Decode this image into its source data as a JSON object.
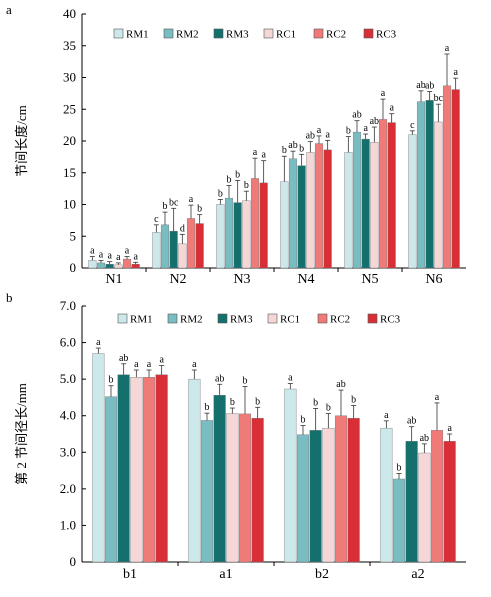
{
  "chart_data": [
    {
      "panel": "a",
      "type": "bar",
      "ylabel": "节间长度/cm",
      "ylim": [
        0,
        40
      ],
      "yticks": [
        0,
        5,
        10,
        15,
        20,
        25,
        30,
        35,
        40
      ],
      "categories": [
        "N1",
        "N2",
        "N3",
        "N4",
        "N5",
        "N6"
      ],
      "legend_position": "top",
      "series": [
        {
          "name": "RM1",
          "color": "#cde8ea",
          "values": [
            1.2,
            5.6,
            10.0,
            13.6,
            18.2,
            21.0
          ],
          "errors": [
            0.6,
            1.2,
            0.8,
            4.0,
            2.5,
            0.6
          ],
          "labels": [
            "a",
            "c",
            "b",
            "b",
            "b",
            "c"
          ]
        },
        {
          "name": "RM2",
          "color": "#79bdc2",
          "values": [
            0.8,
            6.8,
            11.0,
            17.2,
            21.4,
            26.2
          ],
          "errors": [
            0.4,
            2.0,
            2.0,
            1.2,
            1.8,
            1.7
          ],
          "labels": [
            "a",
            "b",
            "b",
            "ab",
            "ab",
            "ab"
          ]
        },
        {
          "name": "RM3",
          "color": "#13706c",
          "values": [
            0.6,
            5.8,
            10.3,
            16.1,
            20.3,
            26.4
          ],
          "errors": [
            0.4,
            3.6,
            3.5,
            1.8,
            0.8,
            1.4
          ],
          "labels": [
            "a",
            "bc",
            "b",
            "b",
            "a",
            "ab"
          ]
        },
        {
          "name": "RC1",
          "color": "#f5d7d7",
          "values": [
            0.5,
            3.8,
            10.6,
            18.2,
            19.8,
            23.0
          ],
          "errors": [
            0.3,
            1.5,
            1.5,
            1.7,
            2.4,
            2.8
          ],
          "labels": [
            "a",
            "d",
            "b",
            "ab",
            "ab",
            "bc"
          ]
        },
        {
          "name": "RC2",
          "color": "#ef7a78",
          "values": [
            1.4,
            7.8,
            14.1,
            19.6,
            23.4,
            28.7
          ],
          "errors": [
            0.4,
            2.1,
            3.2,
            1.2,
            3.2,
            5.0
          ],
          "labels": [
            "a",
            "a",
            "a",
            "a",
            "a",
            "a"
          ]
        },
        {
          "name": "RC3",
          "color": "#d82e35",
          "values": [
            0.6,
            7.0,
            13.4,
            18.6,
            22.9,
            28.1
          ],
          "errors": [
            0.3,
            1.4,
            3.5,
            1.5,
            1.4,
            1.8
          ],
          "labels": [
            "a",
            "b",
            "a",
            "a",
            "a",
            "a"
          ]
        }
      ]
    },
    {
      "panel": "b",
      "type": "bar",
      "ylabel": "第 2 节间径长/mm",
      "ylim": [
        0,
        7
      ],
      "yticks": [
        "0",
        "1.0",
        "2.0",
        "3.0",
        "4.0",
        "5.0",
        "6.0",
        "7.0"
      ],
      "categories": [
        "b1",
        "a1",
        "b2",
        "a2"
      ],
      "legend_position": "top",
      "series": [
        {
          "name": "RM1",
          "color": "#cde8ea",
          "values": [
            5.7,
            5.0,
            4.73,
            3.66
          ],
          "errors": [
            0.15,
            0.25,
            0.15,
            0.2
          ],
          "labels": [
            "a",
            "a",
            "a",
            "a"
          ]
        },
        {
          "name": "RM2",
          "color": "#79bdc2",
          "values": [
            4.52,
            3.87,
            3.48,
            2.27
          ],
          "errors": [
            0.3,
            0.2,
            0.25,
            0.15
          ],
          "labels": [
            "b",
            "b",
            "b",
            "b"
          ]
        },
        {
          "name": "RM3",
          "color": "#13706c",
          "values": [
            5.12,
            4.56,
            3.6,
            3.3
          ],
          "errors": [
            0.3,
            0.3,
            0.6,
            0.4
          ],
          "labels": [
            "ab",
            "ab",
            "b",
            "ab"
          ]
        },
        {
          "name": "RC1",
          "color": "#f5d7d7",
          "values": [
            5.05,
            4.06,
            3.66,
            2.98
          ],
          "errors": [
            0.2,
            0.15,
            0.4,
            0.25
          ],
          "labels": [
            "a",
            "b",
            "b",
            "ab"
          ]
        },
        {
          "name": "RC2",
          "color": "#ef7a78",
          "values": [
            5.05,
            4.05,
            4.0,
            3.6
          ],
          "errors": [
            0.2,
            0.75,
            0.7,
            0.75
          ],
          "labels": [
            "a",
            "b",
            "ab",
            "a"
          ]
        },
        {
          "name": "RC3",
          "color": "#d82e35",
          "values": [
            5.12,
            3.93,
            3.93,
            3.3
          ],
          "errors": [
            0.25,
            0.3,
            0.35,
            0.2
          ],
          "labels": [
            "a",
            "b",
            "b",
            "a"
          ]
        }
      ]
    }
  ]
}
